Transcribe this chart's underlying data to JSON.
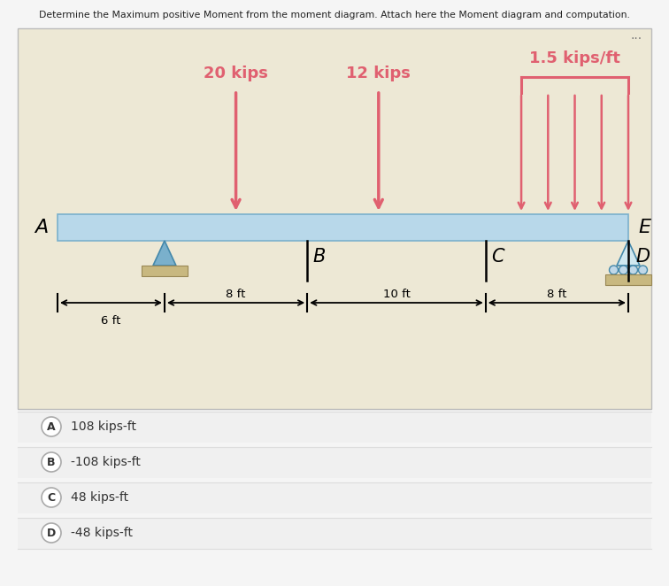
{
  "title": "Determine the Maximum positive Moment from the moment diagram. Attach here the Moment diagram and computation.",
  "page_bg": "#f5f5f5",
  "diagram_bg": "#ede8d5",
  "beam_color": "#b8d8ea",
  "beam_border_color": "#7ab0cc",
  "load_color": "#e06070",
  "support_A_color": "#7ab0cc",
  "support_D_color": "#7ab0cc",
  "ground_color": "#c8b880",
  "options": [
    {
      "label": "A",
      "text": "108 kips-ft"
    },
    {
      "label": "B",
      "text": "-108 kips-ft"
    },
    {
      "label": "C",
      "text": "48 kips-ft"
    },
    {
      "label": "D",
      "text": "-48 kips-ft"
    }
  ],
  "load1_label": "20 kips",
  "load2_label": "12 kips",
  "dist_load_label": "1.5 kips/ft",
  "distances": [
    "6 ft",
    "8 ft",
    "10 ft",
    "8 ft"
  ],
  "three_dots": "..."
}
